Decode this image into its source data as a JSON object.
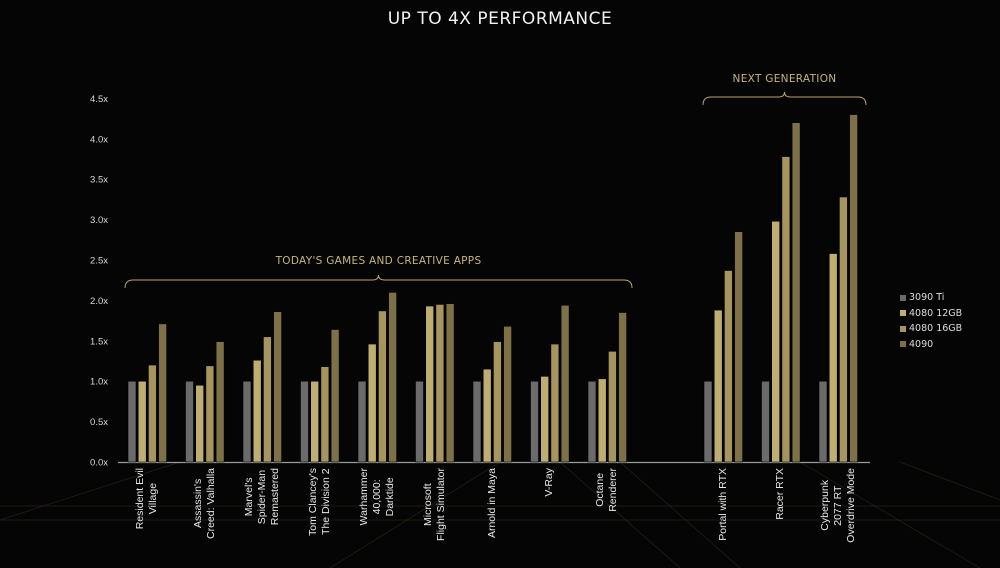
{
  "chart_data": {
    "type": "bar",
    "title": "UP TO 4X PERFORMANCE",
    "ylim": [
      0,
      4.5
    ],
    "yticks": [
      "0.0x",
      "0.5x",
      "1.0x",
      "1.5x",
      "2.0x",
      "2.5x",
      "3.0x",
      "3.5x",
      "4.0x",
      "4.5x"
    ],
    "grid": false,
    "legend_position": "right",
    "groups": [
      {
        "label": "TODAY'S GAMES AND CREATIVE APPS",
        "categories": [
          0,
          1,
          2,
          3,
          4,
          5,
          6,
          7,
          8
        ]
      },
      {
        "label": "NEXT GENERATION",
        "categories": [
          9,
          10,
          11
        ]
      }
    ],
    "categories": [
      "Resident Evil\nVillage",
      "Assassin's\nCreed: Valhalla",
      "Marvel's\nSpider-Man\nRemastered",
      "Tom Clancey's\nThe Division 2",
      "Warhammer\n40,000:\nDarktide",
      "Microsoft\nFlight Simulator",
      "Arnold in Maya",
      "V-Ray",
      "Octane\nRenderer",
      "Portal with RTX",
      "Racer RTX",
      "Cyberpunk\n2077 RT\nOverdrive Mode"
    ],
    "series": [
      {
        "name": "3090 Ti",
        "color": "#6b6b6b",
        "values": [
          1.0,
          1.0,
          1.0,
          1.0,
          1.0,
          1.0,
          1.0,
          1.0,
          1.0,
          1.0,
          1.0,
          1.0
        ]
      },
      {
        "name": "4080 12GB",
        "color": "#bfae72",
        "values": [
          1.0,
          0.95,
          1.26,
          1.0,
          1.46,
          1.93,
          1.15,
          1.06,
          1.03,
          1.88,
          2.98,
          2.58
        ]
      },
      {
        "name": "4080 16GB",
        "color": "#a6955f",
        "values": [
          1.2,
          1.19,
          1.55,
          1.18,
          1.87,
          1.95,
          1.49,
          1.46,
          1.37,
          2.37,
          3.78,
          3.28
        ]
      },
      {
        "name": "4090",
        "color": "#7e7047",
        "values": [
          1.71,
          1.49,
          1.86,
          1.64,
          2.1,
          1.96,
          1.68,
          1.94,
          1.85,
          2.85,
          4.2,
          4.3
        ]
      }
    ]
  }
}
